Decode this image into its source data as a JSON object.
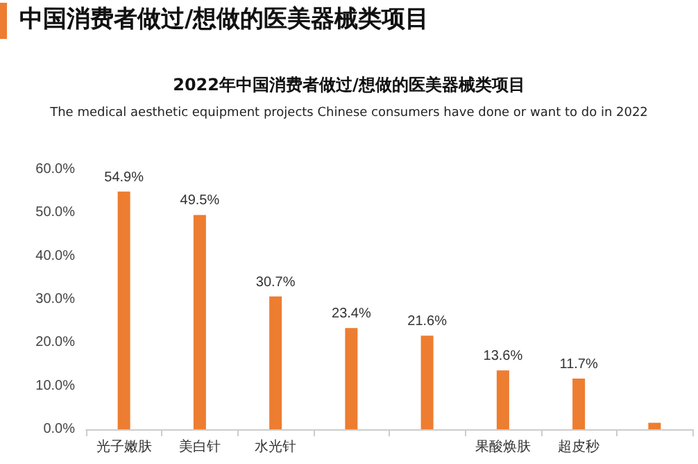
{
  "chart_data": {
    "type": "bar",
    "title": "2022年中国消费者做过/想做的医美器械类项目",
    "subtitle": "The medical aesthetic equipment projects Chinese consumers have done or want to do in 2022",
    "annotations": [
      "中国消费者做过/想做的医美器械类项目"
    ],
    "categories": [
      "光子嫩肤",
      "美白针",
      "水光针",
      null,
      null,
      "果酸焕肤",
      "超皮秒",
      null
    ],
    "values": [
      54.9,
      49.5,
      30.7,
      23.4,
      21.6,
      13.6,
      11.7,
      1.5
    ],
    "value_labels": [
      "54.9%",
      "49.5%",
      "30.7%",
      "23.4%",
      "21.6%",
      "13.6%",
      "11.7%",
      null
    ],
    "color": "#ed7d31",
    "ylim": [
      0,
      60
    ],
    "yticks": [
      {
        "value": 0,
        "label": "0.0%"
      },
      {
        "value": 10,
        "label": "10.0%"
      },
      {
        "value": 20,
        "label": "20.0%"
      },
      {
        "value": 30,
        "label": "30.0%"
      },
      {
        "value": 40,
        "label": "40.0%"
      },
      {
        "value": 50,
        "label": "50.0%"
      },
      {
        "value": 60,
        "label": "60.0%"
      }
    ],
    "grid": false
  }
}
